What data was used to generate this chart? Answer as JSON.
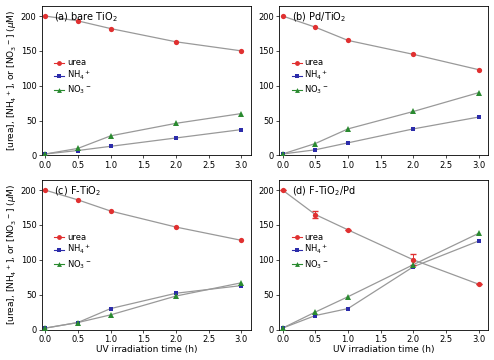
{
  "panels": [
    {
      "label": "(a) bare TiO$_2$",
      "urea": [
        200,
        193,
        182,
        163,
        150
      ],
      "nh4": [
        2,
        7,
        13,
        25,
        37
      ],
      "no3": [
        2,
        10,
        28,
        46,
        60
      ]
    },
    {
      "label": "(b) Pd/TiO$_2$",
      "urea": [
        200,
        184,
        165,
        145,
        123
      ],
      "nh4": [
        2,
        8,
        18,
        38,
        55
      ],
      "no3": [
        2,
        17,
        38,
        63,
        90
      ]
    },
    {
      "label": "(c) F-TiO$_2$",
      "urea": [
        200,
        186,
        170,
        147,
        128
      ],
      "nh4": [
        2,
        10,
        30,
        52,
        63
      ],
      "no3": [
        2,
        10,
        21,
        48,
        67
      ]
    },
    {
      "label": "(d) F-TiO$_2$/Pd",
      "urea": [
        200,
        165,
        143,
        100,
        65
      ],
      "nh4": [
        2,
        20,
        30,
        90,
        127
      ],
      "no3": [
        2,
        25,
        47,
        93,
        138
      ],
      "urea_err": [
        0,
        5,
        0,
        8,
        0
      ],
      "nh4_err": [
        0,
        0,
        0,
        0,
        0
      ],
      "no3_err": [
        0,
        0,
        0,
        0,
        0
      ]
    }
  ],
  "x": [
    0.0,
    0.5,
    1.0,
    2.0,
    3.0
  ],
  "xlabel": "UV irradiation time (h)",
  "ylabel": "[urea], [NH$_4$$^+$], or [NO$_3$$^-$] ($\\mu$M)",
  "ylim": [
    0,
    215
  ],
  "yticks": [
    0,
    50,
    100,
    150,
    200
  ],
  "xlim": [
    -0.05,
    3.15
  ],
  "xticks": [
    0.0,
    0.5,
    1.0,
    1.5,
    2.0,
    2.5,
    3.0
  ],
  "urea_color": "#e03030",
  "nh4_color": "#2c2caa",
  "no3_color": "#2a8a30",
  "line_color": "#999999",
  "bg_color": "#ffffff",
  "legend_urea": "urea",
  "legend_nh4": "NH$_4$$^+$",
  "legend_no3": "NO$_3$$^-$",
  "panel_label_fontsize": 7,
  "tick_fontsize": 6,
  "legend_fontsize": 6,
  "axis_label_fontsize": 6.5
}
